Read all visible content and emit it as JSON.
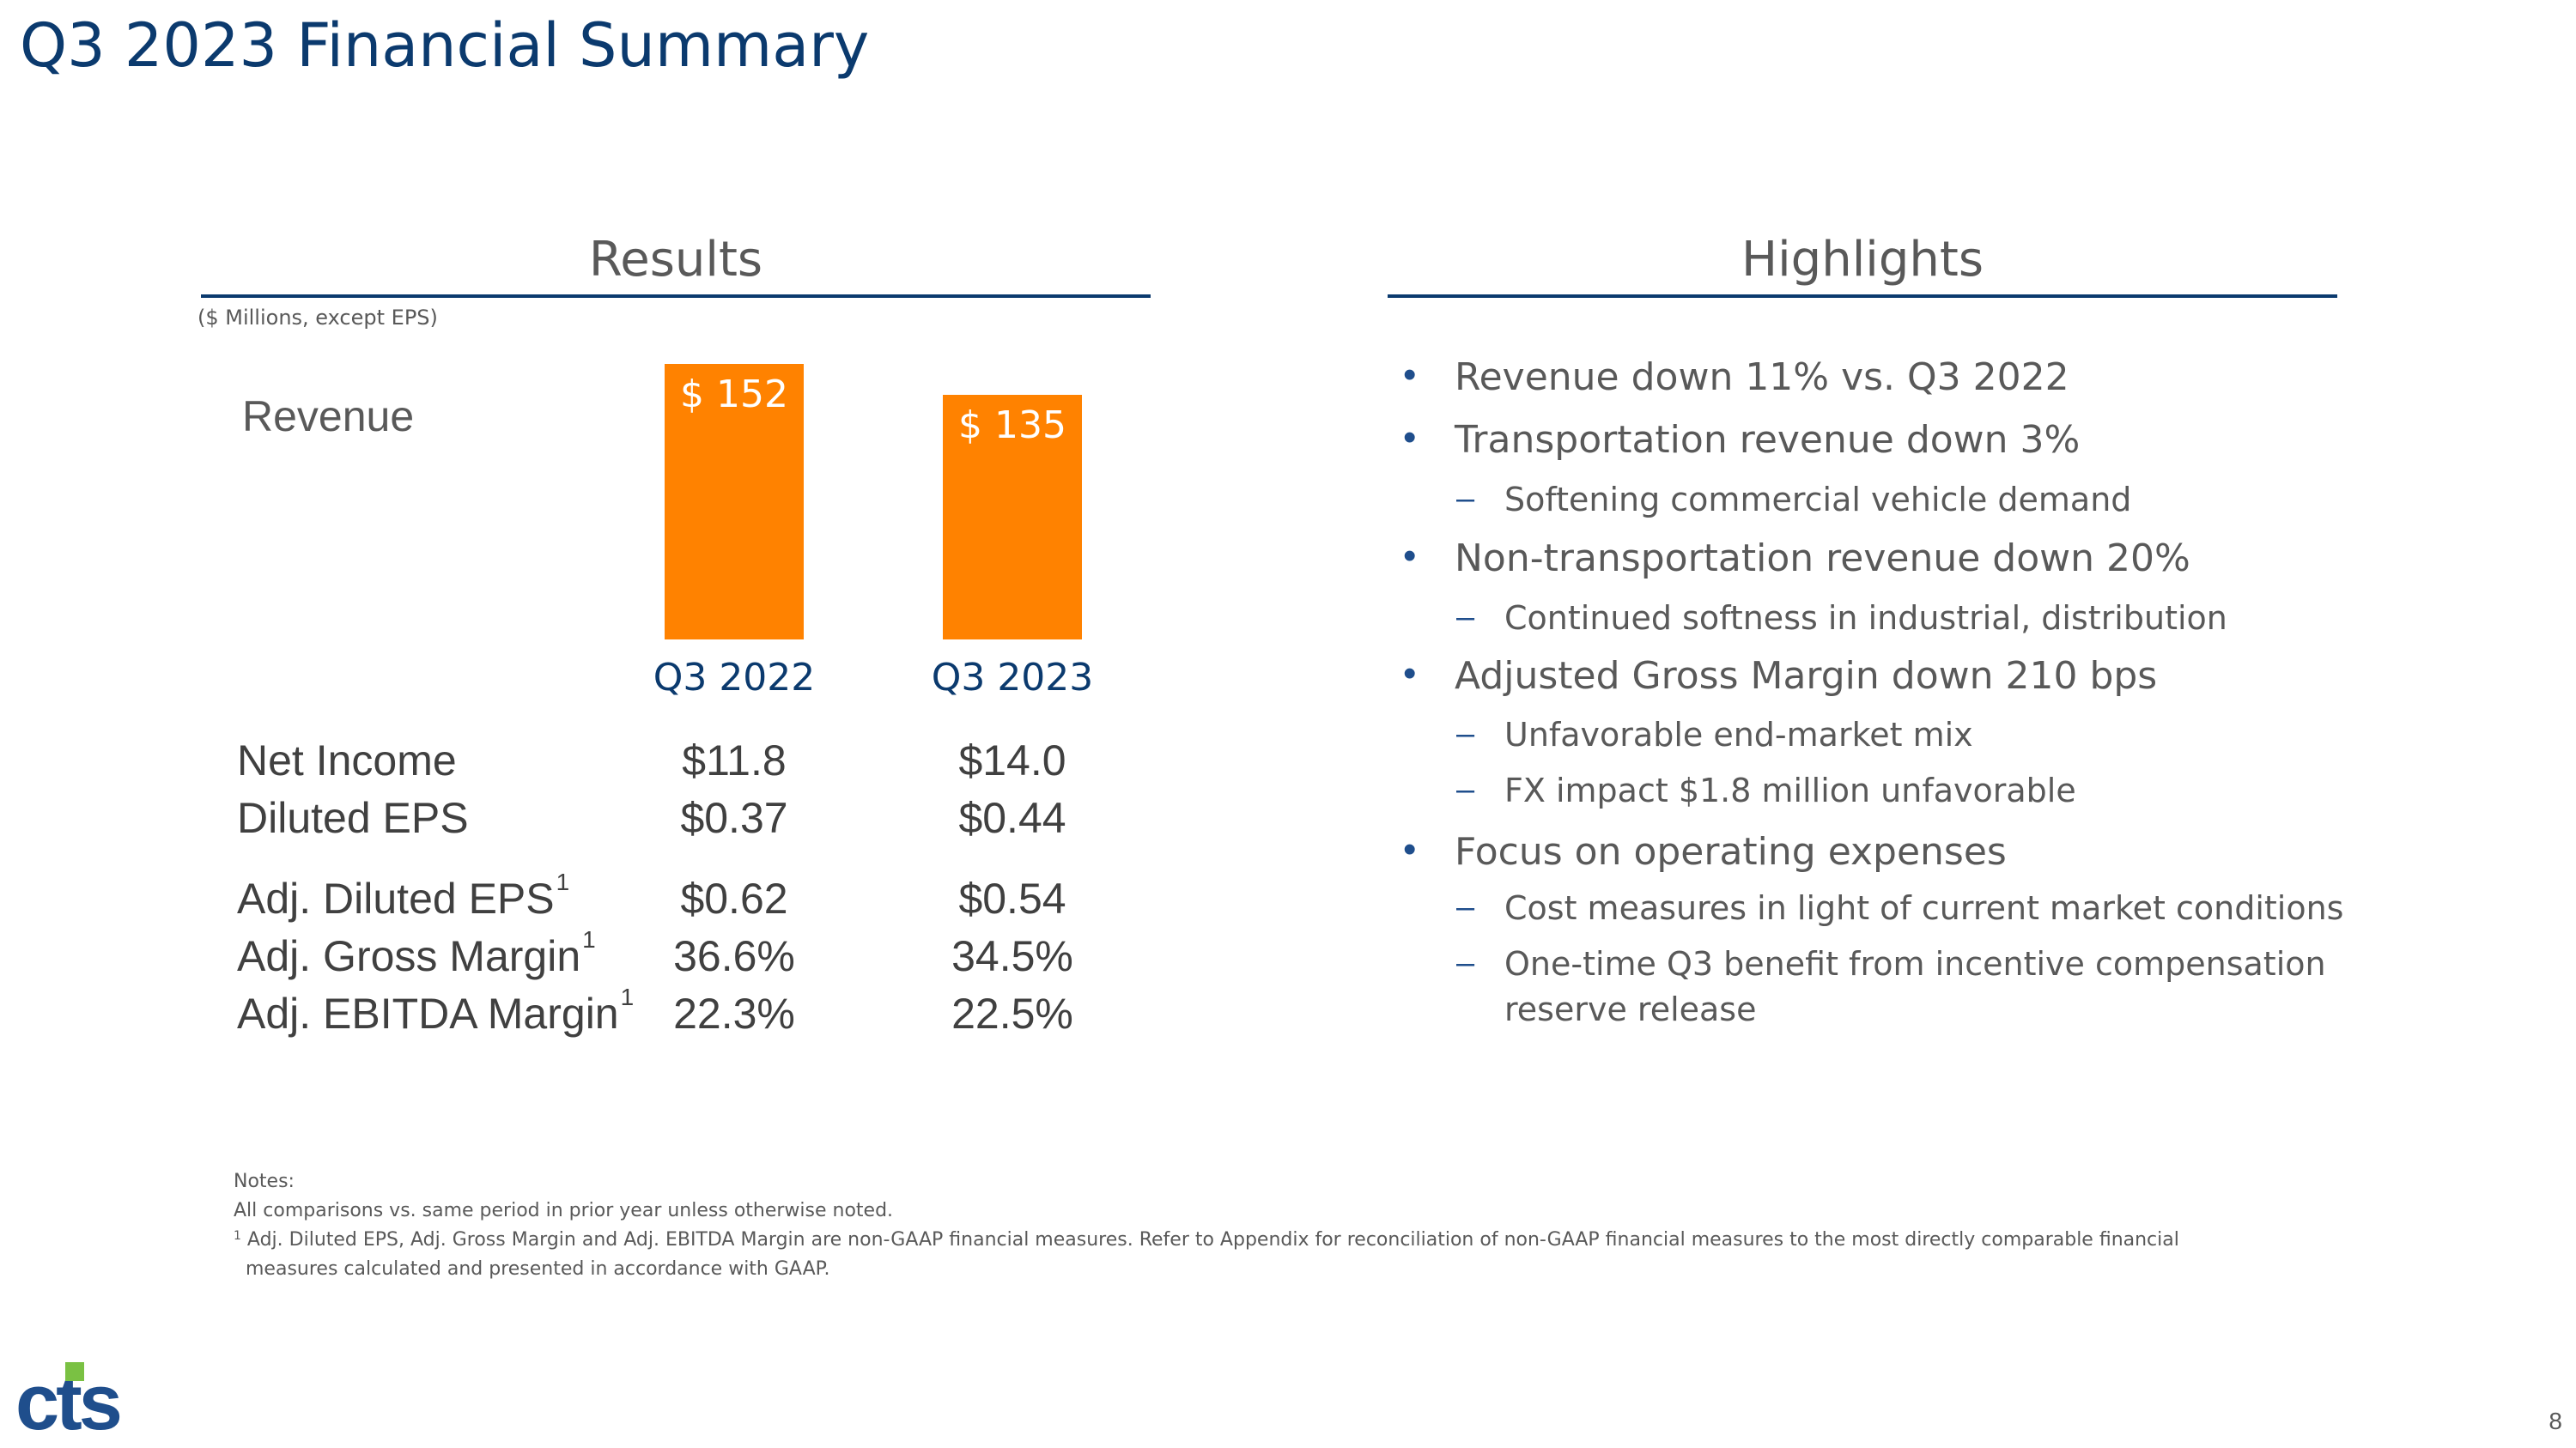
{
  "title": "Q3 2023 Financial Summary",
  "results": {
    "heading": "Results",
    "units_note": "($ Millions, except EPS)",
    "revenue_label": "Revenue"
  },
  "chart_data": {
    "type": "bar",
    "categories": [
      "Q3 2022",
      "Q3 2023"
    ],
    "values": [
      152,
      135
    ],
    "value_labels": [
      "$ 152",
      "$ 135"
    ],
    "ylabel": "Revenue",
    "color": "#ff8200",
    "ylim": [
      0,
      152
    ]
  },
  "metrics": [
    {
      "label": "Net Income",
      "sup": "",
      "q3_2022": "$11.8",
      "q3_2023": "$14.0"
    },
    {
      "label": "Diluted EPS",
      "sup": "",
      "q3_2022": "$0.37",
      "q3_2023": "$0.44"
    },
    {
      "label": "Adj. Diluted EPS",
      "sup": "1",
      "q3_2022": "$0.62",
      "q3_2023": "$0.54"
    },
    {
      "label": "Adj. Gross Margin",
      "sup": "1",
      "q3_2022": "36.6%",
      "q3_2023": "34.5%"
    },
    {
      "label": "Adj. EBITDA Margin",
      "sup": "1",
      "q3_2022": "22.3%",
      "q3_2023": "22.5%"
    }
  ],
  "highlights": {
    "heading": "Highlights",
    "bullet_glyph": "•",
    "dash_glyph": "–",
    "items": [
      {
        "level": 1,
        "text": "Revenue down 11% vs. Q3 2022"
      },
      {
        "level": 1,
        "text": "Transportation revenue down 3%"
      },
      {
        "level": 2,
        "text": "Softening commercial vehicle demand"
      },
      {
        "level": 1,
        "text": "Non-transportation revenue down 20%"
      },
      {
        "level": 2,
        "text": "Continued softness in industrial, distribution"
      },
      {
        "level": 1,
        "text": "Adjusted Gross Margin down 210 bps"
      },
      {
        "level": 2,
        "text": "Unfavorable end-market mix"
      },
      {
        "level": 2,
        "text": "FX impact $1.8 million unfavorable"
      },
      {
        "level": 1,
        "text": "Focus on operating expenses"
      },
      {
        "level": 2,
        "text": "Cost measures in light of current market conditions"
      },
      {
        "level": 2,
        "text": "One-time Q3 benefit from incentive compensation"
      },
      {
        "level": 3,
        "text": "reserve release"
      }
    ]
  },
  "notes": {
    "heading": "Notes:",
    "line1": "All comparisons vs. same period in prior year unless otherwise noted.",
    "footnote_mark": "1",
    "line2": "Adj. Diluted EPS, Adj. Gross Margin and Adj. EBITDA Margin are non-GAAP financial measures. Refer to Appendix for reconciliation of non-GAAP financial measures to the most directly comparable financial",
    "line3": "measures calculated and presented in accordance with GAAP."
  },
  "logo": {
    "text": "cts",
    "color": "#1f4e8c",
    "accent": "#7ac143"
  },
  "page_number": "8",
  "colors": {
    "title": "#0b3a6e",
    "rule": "#0b3a6e",
    "bar": "#ff8200"
  }
}
